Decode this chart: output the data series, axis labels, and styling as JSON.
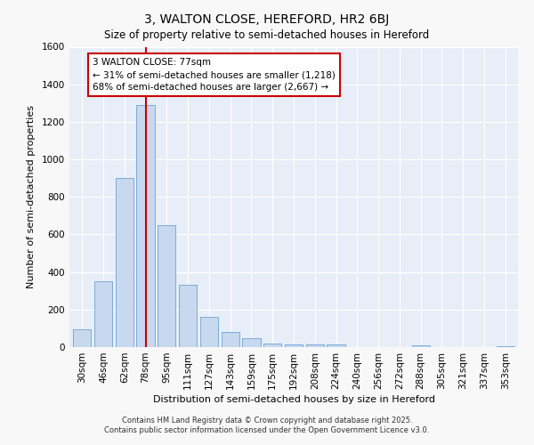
{
  "title": "3, WALTON CLOSE, HEREFORD, HR2 6BJ",
  "subtitle": "Size of property relative to semi-detached houses in Hereford",
  "xlabel": "Distribution of semi-detached houses by size in Hereford",
  "ylabel": "Number of semi-detached properties",
  "bar_labels": [
    "30sqm",
    "46sqm",
    "62sqm",
    "78sqm",
    "95sqm",
    "111sqm",
    "127sqm",
    "143sqm",
    "159sqm",
    "175sqm",
    "192sqm",
    "208sqm",
    "224sqm",
    "240sqm",
    "256sqm",
    "272sqm",
    "288sqm",
    "305sqm",
    "321sqm",
    "337sqm",
    "353sqm"
  ],
  "bar_values": [
    95,
    350,
    900,
    1290,
    650,
    330,
    160,
    80,
    48,
    20,
    15,
    15,
    13,
    0,
    0,
    0,
    10,
    0,
    0,
    0,
    5
  ],
  "bar_color": "#c8d8ee",
  "bar_edgecolor": "#7aacd8",
  "vline_index": 3,
  "vline_color": "#cc0000",
  "annotation_title": "3 WALTON CLOSE: 77sqm",
  "annotation_line1": "← 31% of semi-detached houses are smaller (1,218)",
  "annotation_line2": "68% of semi-detached houses are larger (2,667) →",
  "annotation_box_edgecolor": "#cc0000",
  "ylim": [
    0,
    1600
  ],
  "yticks": [
    0,
    200,
    400,
    600,
    800,
    1000,
    1200,
    1400,
    1600
  ],
  "footnote1": "Contains HM Land Registry data © Crown copyright and database right 2025.",
  "footnote2": "Contains public sector information licensed under the Open Government Licence v3.0.",
  "plot_bg_color": "#e8eef8",
  "fig_bg_color": "#f8f8f8",
  "title_fontsize": 10,
  "subtitle_fontsize": 8.5,
  "tick_fontsize": 7.5,
  "label_fontsize": 8,
  "annotation_fontsize": 7.5
}
